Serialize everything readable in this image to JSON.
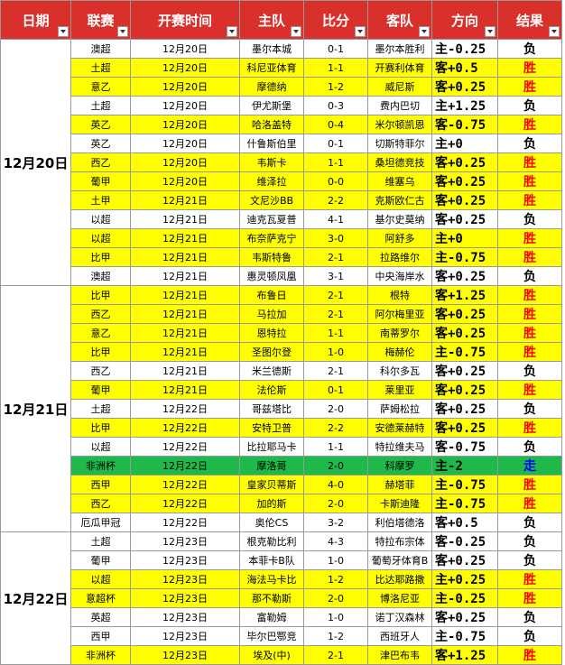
{
  "header": [
    "日期",
    "联赛",
    "开赛时间",
    "主队",
    "比分",
    "客队",
    "方向",
    "结果"
  ],
  "groups": [
    {
      "date": "12月20日",
      "rows": [
        {
          "cells": [
            "澳超",
            "12月20日",
            "墨尔本城",
            "0-1",
            "墨尔本胜利",
            "主-0.25",
            "负"
          ],
          "color": "#ffffff",
          "result_color": "#000000"
        },
        {
          "cells": [
            "土超",
            "12月20日",
            "科尼亚体育",
            "1-1",
            "开赛利体育",
            "客+0.5",
            "胜"
          ],
          "color": "#ffff00",
          "result_color": "#ff0000"
        },
        {
          "cells": [
            "意乙",
            "12月20日",
            "摩德纳",
            "1-2",
            "威尼斯",
            "客+0.25",
            "胜"
          ],
          "color": "#ffff00",
          "result_color": "#ff0000"
        },
        {
          "cells": [
            "土超",
            "12月20日",
            "伊尤斯堡",
            "0-3",
            "费内巴切",
            "主+1.25",
            "负"
          ],
          "color": "#ffffff",
          "result_color": "#000000"
        },
        {
          "cells": [
            "英乙",
            "12月20日",
            "哈洛盖特",
            "0-4",
            "米尔顿凯恩",
            "客-0.75",
            "胜"
          ],
          "color": "#ffff00",
          "result_color": "#ff0000"
        },
        {
          "cells": [
            "英乙",
            "12月20日",
            "什鲁斯伯里",
            "0-1",
            "切斯特菲尔",
            "主+0",
            "负"
          ],
          "color": "#ffffff",
          "result_color": "#000000"
        },
        {
          "cells": [
            "西乙",
            "12月20日",
            "韦斯卡",
            "1-1",
            "桑坦德竞技",
            "客+0.25",
            "胜"
          ],
          "color": "#ffff00",
          "result_color": "#ff0000"
        },
        {
          "cells": [
            "葡甲",
            "12月20日",
            "维泽拉",
            "0-0",
            "维塞乌",
            "客+0.25",
            "胜"
          ],
          "color": "#ffff00",
          "result_color": "#ff0000"
        },
        {
          "cells": [
            "土甲",
            "12月21日",
            "文尼沙BB",
            "2-2",
            "克斯欧仁古",
            "客+0.25",
            "胜"
          ],
          "color": "#ffff00",
          "result_color": "#ff0000"
        },
        {
          "cells": [
            "以超",
            "12月21日",
            "迪克瓦夏普",
            "4-1",
            "基尔史莫纳",
            "客+0.25",
            "负"
          ],
          "color": "#ffffff",
          "result_color": "#000000"
        },
        {
          "cells": [
            "以超",
            "12月21日",
            "布奈萨克宁",
            "3-0",
            "阿舒多",
            "主+0",
            "胜"
          ],
          "color": "#ffff00",
          "result_color": "#ff0000"
        },
        {
          "cells": [
            "比甲",
            "12月21日",
            "韦斯特鲁",
            "2-1",
            "拉路维尔",
            "主-0.75",
            "胜"
          ],
          "color": "#ffff00",
          "result_color": "#ff0000"
        },
        {
          "cells": [
            "澳超",
            "12月21日",
            "惠灵顿凤凰",
            "3-1",
            "中央海岸水",
            "客+0.25",
            "负"
          ],
          "color": "#ffffff",
          "result_color": "#000000"
        }
      ]
    },
    {
      "date": "12月21日",
      "rows": [
        {
          "cells": [
            "比甲",
            "12月21日",
            "布鲁日",
            "2-1",
            "根特",
            "客+1.25",
            "胜"
          ],
          "color": "#ffff00",
          "result_color": "#ff0000"
        },
        {
          "cells": [
            "西乙",
            "12月21日",
            "马拉加",
            "2-1",
            "阿尔梅里亚",
            "客+0.25",
            "胜"
          ],
          "color": "#ffff00",
          "result_color": "#ff0000"
        },
        {
          "cells": [
            "意乙",
            "12月21日",
            "恩特拉",
            "1-1",
            "南蒂罗尔",
            "客+0.25",
            "胜"
          ],
          "color": "#ffff00",
          "result_color": "#ff0000"
        },
        {
          "cells": [
            "比甲",
            "12月21日",
            "圣图尔登",
            "1-0",
            "梅赫伦",
            "主-0.75",
            "胜"
          ],
          "color": "#ffff00",
          "result_color": "#ff0000"
        },
        {
          "cells": [
            "西乙",
            "12月21日",
            "米兰德斯",
            "2-1",
            "科尔多瓦",
            "客+0.25",
            "负"
          ],
          "color": "#ffffff",
          "result_color": "#000000"
        },
        {
          "cells": [
            "葡甲",
            "12月21日",
            "法伦斯",
            "0-1",
            "莱里亚",
            "客+0.25",
            "胜"
          ],
          "color": "#ffff00",
          "result_color": "#ff0000"
        },
        {
          "cells": [
            "土超",
            "12月22日",
            "哥兹塔比",
            "2-0",
            "萨姆松拉",
            "客+0.25",
            "负"
          ],
          "color": "#ffffff",
          "result_color": "#000000"
        },
        {
          "cells": [
            "比甲",
            "12月22日",
            "安特卫普",
            "2-2",
            "安德莱赫特",
            "客+0.25",
            "胜"
          ],
          "color": "#ffff00",
          "result_color": "#ff0000"
        },
        {
          "cells": [
            "以超",
            "12月22日",
            "比拉耶马卡",
            "1-1",
            "特拉维夫马",
            "客-0.75",
            "负"
          ],
          "color": "#ffffff",
          "result_color": "#000000"
        },
        {
          "cells": [
            "非洲杯",
            "12月22日",
            "摩洛哥",
            "2-0",
            "科摩罗",
            "主-2",
            "走"
          ],
          "color": "#1fb84a",
          "result_color": "#0000ff"
        },
        {
          "cells": [
            "西甲",
            "12月22日",
            "皇家贝蒂斯",
            "4-0",
            "赫塔菲",
            "主-0.75",
            "胜"
          ],
          "color": "#ffff00",
          "result_color": "#ff0000"
        },
        {
          "cells": [
            "西乙",
            "12月22日",
            "加的斯",
            "2-0",
            "卡斯迪隆",
            "主-0.75",
            "胜"
          ],
          "color": "#ffff00",
          "result_color": "#ff0000"
        },
        {
          "cells": [
            "厄瓜甲冠",
            "12月22日",
            "奥伦CS",
            "3-2",
            "利伯塔德洛",
            "客+0.5",
            "负"
          ],
          "color": "#ffffff",
          "result_color": "#000000"
        }
      ]
    },
    {
      "date": "12月22日",
      "rows": [
        {
          "cells": [
            "土超",
            "12月23日",
            "根克勒比利",
            "4-3",
            "特拉布宗体",
            "客-0.25",
            "负"
          ],
          "color": "#ffffff",
          "result_color": "#000000"
        },
        {
          "cells": [
            "葡甲",
            "12月23日",
            "本菲卡B队",
            "1-0",
            "葡萄牙体育B",
            "客+0.25",
            "负"
          ],
          "color": "#ffffff",
          "result_color": "#000000"
        },
        {
          "cells": [
            "以超",
            "12月23日",
            "海法马卡比",
            "1-2",
            "比达耶路撒",
            "主+0.25",
            "胜"
          ],
          "color": "#ffff00",
          "result_color": "#ff0000"
        },
        {
          "cells": [
            "意超杯",
            "12月23日",
            "那不勒斯",
            "2-0",
            "博洛尼亚",
            "主-0.25",
            "胜"
          ],
          "color": "#ffff00",
          "result_color": "#ff0000"
        },
        {
          "cells": [
            "英超",
            "12月23日",
            "富勒姆",
            "1-0",
            "诺丁汉森林",
            "客+0.25",
            "负"
          ],
          "color": "#ffffff",
          "result_color": "#000000"
        },
        {
          "cells": [
            "西甲",
            "12月23日",
            "毕尔巴鄂竞",
            "1-2",
            "西班牙人",
            "主-0.75",
            "负"
          ],
          "color": "#ffffff",
          "result_color": "#000000"
        },
        {
          "cells": [
            "非洲杯",
            "12月23日",
            "埃及(中)",
            "2-1",
            "津巴布韦",
            "客+1.25",
            "胜"
          ],
          "color": "#ffff00",
          "result_color": "#ff0000"
        }
      ]
    }
  ]
}
